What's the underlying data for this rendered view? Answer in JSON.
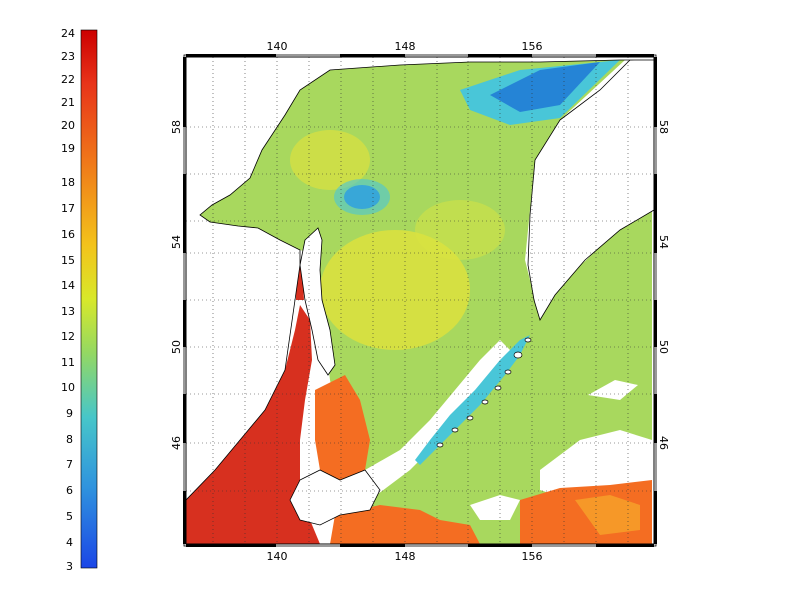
{
  "colorbar": {
    "ticks": [
      "24",
      "23",
      "22",
      "21",
      "20",
      "19",
      "18",
      "17",
      "16",
      "15",
      "14",
      "13",
      "12",
      "11",
      "10",
      "9",
      "8",
      "7",
      "6",
      "5",
      "4",
      "3"
    ]
  },
  "map": {
    "lon_ticks_top": [
      "140",
      "148",
      "156"
    ],
    "lon_ticks_bottom": [
      "140",
      "148",
      "156"
    ],
    "lat_ticks_left": [
      "58",
      "54",
      "50",
      "46"
    ],
    "lat_ticks_right": [
      "58",
      "54",
      "50",
      "46"
    ],
    "lon_range": [
      137,
      167
    ],
    "lat_range": [
      42,
      60
    ],
    "colors": {
      "red": "#d7301f",
      "orange": "#f46d22",
      "yellow": "#e8e43a",
      "green": "#a9d85a",
      "cyan": "#49c6d8",
      "blue": "#1f78d6",
      "land": "#ffffff"
    }
  }
}
